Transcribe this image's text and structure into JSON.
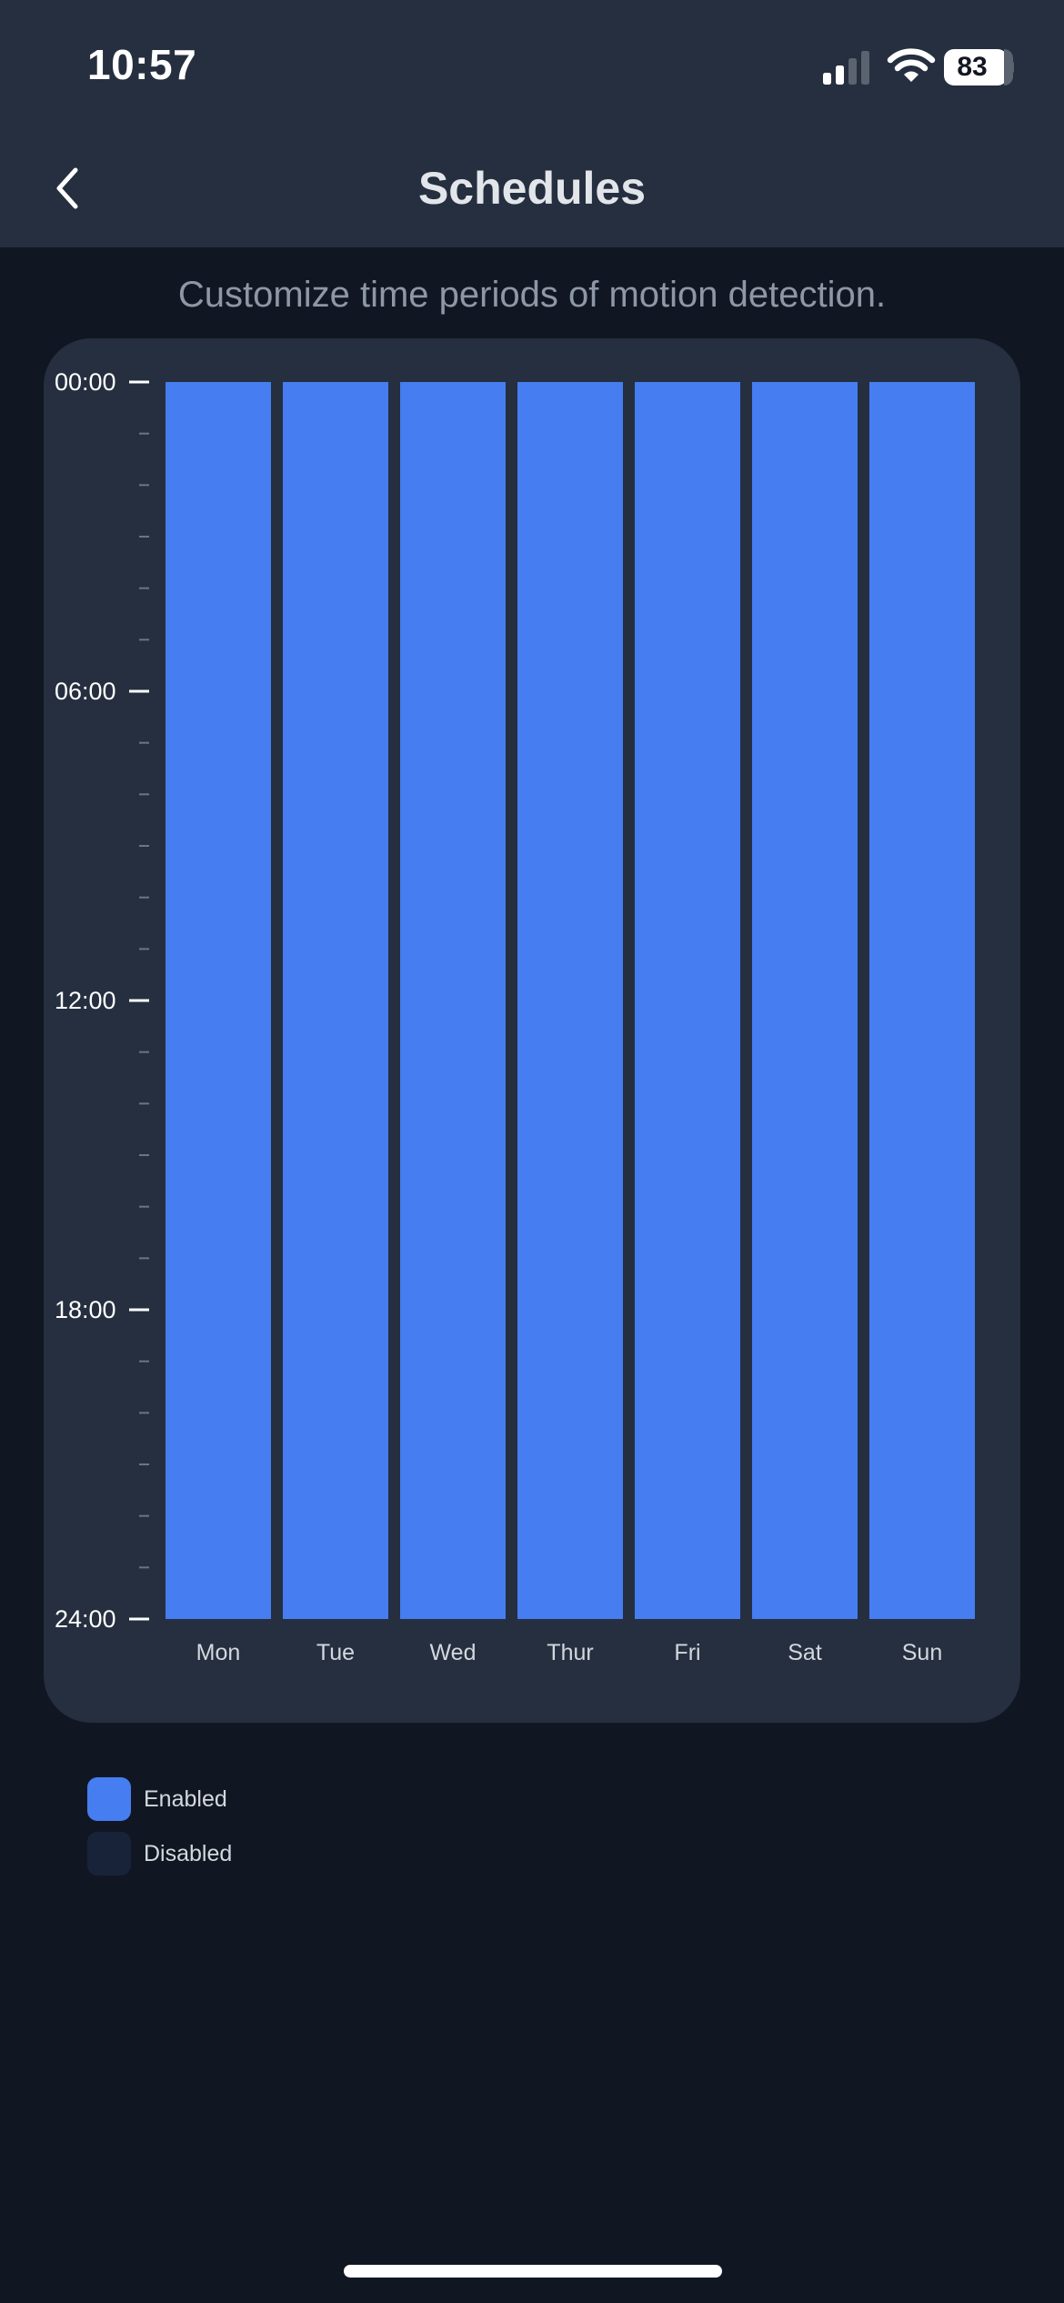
{
  "status_bar": {
    "time": "10:57",
    "battery": "83",
    "signal_icon": "cellular-signal-icon",
    "wifi_icon": "wifi-icon",
    "battery_icon": "battery-icon"
  },
  "nav": {
    "back_icon": "chevron-left-icon",
    "title": "Schedules"
  },
  "subtitle": "Customize time periods of motion detection.",
  "chart_data": {
    "type": "bar",
    "categories": [
      "Mon",
      "Tue",
      "Wed",
      "Thur",
      "Fri",
      "Sat",
      "Sun"
    ],
    "y_tick_labels": [
      "00:00",
      "06:00",
      "12:00",
      "18:00",
      "24:00"
    ],
    "ylim": [
      0,
      24
    ],
    "series": [
      {
        "name": "Enabled",
        "color": "#467df0",
        "ranges": [
          [
            [
              0,
              24
            ]
          ],
          [
            [
              0,
              24
            ]
          ],
          [
            [
              0,
              24
            ]
          ],
          [
            [
              0,
              24
            ]
          ],
          [
            [
              0,
              24
            ]
          ],
          [
            [
              0,
              24
            ]
          ],
          [
            [
              0,
              24
            ]
          ]
        ]
      }
    ]
  },
  "legend": [
    {
      "label": "Enabled",
      "color": "#467df0"
    },
    {
      "label": "Disabled",
      "color": "#18233a"
    }
  ],
  "colors": {
    "background": "#111722",
    "card": "#252f3f",
    "enabled": "#467df0",
    "disabled": "#18233a"
  }
}
